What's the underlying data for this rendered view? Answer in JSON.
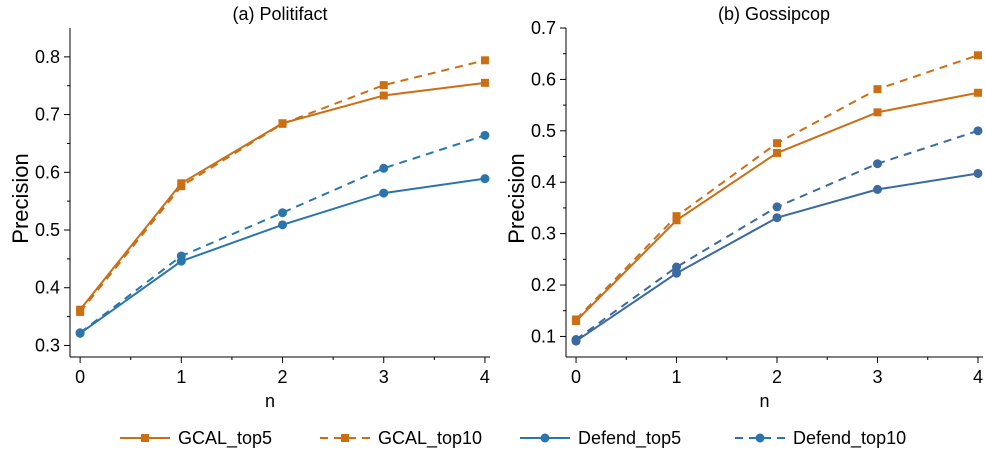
{
  "chart_data": [
    {
      "type": "line",
      "title": "(a) Politifact",
      "xlabel": "n",
      "ylabel": "Precision",
      "x": [
        0,
        1,
        2,
        3,
        4
      ],
      "xticks": [
        "0",
        "1",
        "2",
        "3",
        "4"
      ],
      "xlim": [
        -0.1,
        4.05
      ],
      "ylim": [
        0.28,
        0.85
      ],
      "yticks": [
        "0.3",
        "0.4",
        "0.5",
        "0.6",
        "0.7",
        "0.8"
      ],
      "grid": false,
      "series": [
        {
          "name": "GCAL_top5",
          "values": [
            0.362,
            0.581,
            0.685,
            0.733,
            0.755
          ],
          "color": "#cc6e14",
          "dash": "solid",
          "marker": "square"
        },
        {
          "name": "GCAL_top10",
          "values": [
            0.358,
            0.576,
            0.684,
            0.751,
            0.794
          ],
          "color": "#cc6e14",
          "dash": "dashed",
          "marker": "square"
        },
        {
          "name": "Defend_top5",
          "values": [
            0.321,
            0.446,
            0.509,
            0.564,
            0.589
          ],
          "color": "#2a76ab",
          "dash": "solid",
          "marker": "circle"
        },
        {
          "name": "Defend_top10",
          "values": [
            0.322,
            0.455,
            0.53,
            0.607,
            0.664
          ],
          "color": "#2a76ab",
          "dash": "dashed",
          "marker": "circle"
        }
      ]
    },
    {
      "type": "line",
      "title": "(b) Gossipcop",
      "xlabel": "n",
      "ylabel": "Precision",
      "x": [
        0,
        1,
        2,
        3,
        4
      ],
      "xticks": [
        "0",
        "1",
        "2",
        "3",
        "4"
      ],
      "xlim": [
        -0.1,
        4.05
      ],
      "ylim": [
        0.06,
        0.7
      ],
      "yticks": [
        "0.1",
        "0.2",
        "0.3",
        "0.4",
        "0.5",
        "0.6",
        "0.7"
      ],
      "grid": false,
      "series": [
        {
          "name": "GCAL_top5",
          "values": [
            0.13,
            0.326,
            0.457,
            0.536,
            0.574
          ],
          "color": "#cc6e14",
          "dash": "solid",
          "marker": "square"
        },
        {
          "name": "GCAL_top10",
          "values": [
            0.133,
            0.334,
            0.476,
            0.581,
            0.647
          ],
          "color": "#cc6e14",
          "dash": "dashed",
          "marker": "square"
        },
        {
          "name": "Defend_top5",
          "values": [
            0.091,
            0.223,
            0.331,
            0.386,
            0.417
          ],
          "color": "#3a6aa0",
          "dash": "solid",
          "marker": "circle"
        },
        {
          "name": "Defend_top10",
          "values": [
            0.094,
            0.235,
            0.352,
            0.436,
            0.5
          ],
          "color": "#3a6aa0",
          "dash": "dashed",
          "marker": "circle"
        }
      ]
    }
  ],
  "legend": {
    "placement": "bottom",
    "entries": [
      {
        "label": "GCAL_top5",
        "color": "#cc6e14",
        "dash": "solid",
        "marker": "square"
      },
      {
        "label": "GCAL_top10",
        "color": "#cc6e14",
        "dash": "dashed",
        "marker": "square"
      },
      {
        "label": "Defend_top5",
        "color": "#2a76ab",
        "dash": "solid",
        "marker": "circle"
      },
      {
        "label": "Defend_top10",
        "color": "#2a76ab",
        "dash": "dashed",
        "marker": "circle"
      }
    ]
  }
}
